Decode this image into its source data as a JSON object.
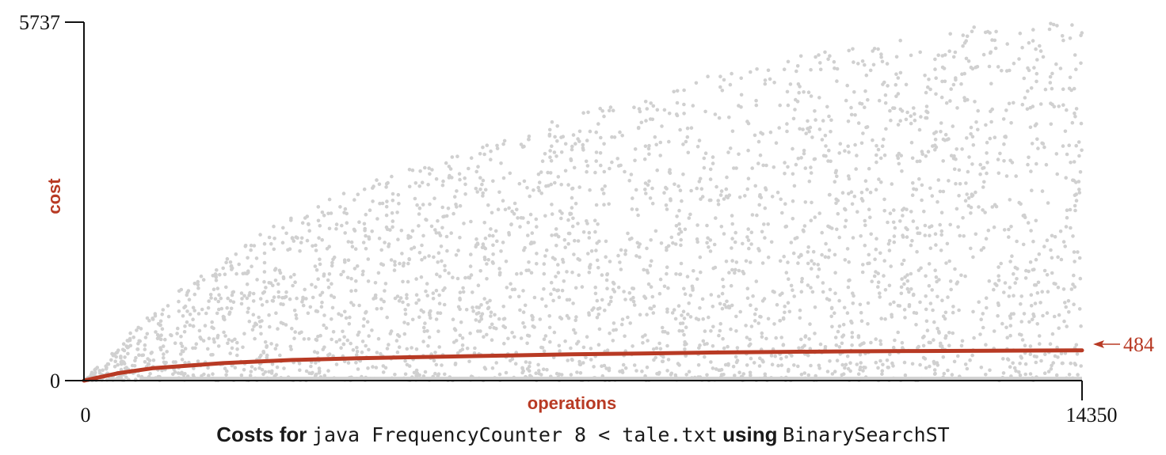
{
  "chart_data": {
    "type": "scatter",
    "xlabel": "operations",
    "ylabel": "cost",
    "xlim": [
      0,
      14350
    ],
    "ylim": [
      0,
      5737
    ],
    "x_ticks": [
      "0",
      "14350"
    ],
    "y_ticks": [
      "0",
      "5737"
    ],
    "grid": false,
    "colors": {
      "points": "#d0d0d0",
      "average": "#b83a24",
      "axis": "#111111"
    },
    "series": [
      {
        "role": "individual operation costs (sampled)",
        "style": "gray dots",
        "envelope_x": [
          0,
          1000,
          2500,
          4000,
          5500,
          7000,
          8500,
          10000,
          11500,
          13000,
          14350
        ],
        "envelope_max": [
          0,
          1150,
          2350,
          3150,
          3650,
          4250,
          4750,
          5150,
          5400,
          5700,
          5737
        ]
      },
      {
        "role": "cumulative average cost",
        "style": "red line",
        "x": [
          0,
          500,
          1000,
          2000,
          3000,
          4000,
          5000,
          6000,
          7000,
          8000,
          9000,
          10000,
          11000,
          12000,
          13000,
          14350
        ],
        "y": [
          0,
          120,
          200,
          280,
          330,
          360,
          380,
          400,
          420,
          435,
          450,
          460,
          468,
          474,
          479,
          484
        ]
      }
    ],
    "annotations": [
      {
        "text": "484",
        "target": "final average value"
      }
    ],
    "caption": {
      "part1": "Costs for",
      "code1": "java FrequencyCounter 8 < tale.txt",
      "part2": "using",
      "code2": "BinarySearchST"
    }
  }
}
